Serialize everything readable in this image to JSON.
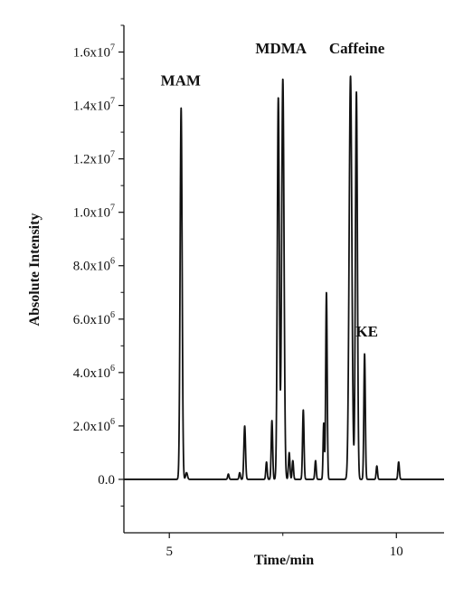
{
  "chart_data": {
    "type": "line",
    "title": "",
    "xlabel": "Time/min",
    "ylabel": "Absolute Intensity",
    "xlim": [
      4,
      11.05
    ],
    "ylim": [
      -2000000,
      17000000
    ],
    "x_ticks": [
      5,
      10
    ],
    "x_tick_labels": [
      "5",
      "10"
    ],
    "y_ticks": [
      0,
      2000000,
      4000000,
      6000000,
      8000000,
      10000000,
      12000000,
      14000000,
      16000000
    ],
    "y_tick_labels": [
      {
        "mant": "0.0",
        "exp": ""
      },
      {
        "mant": "2.0x10",
        "exp": "6"
      },
      {
        "mant": "4.0x10",
        "exp": "6"
      },
      {
        "mant": "6.0x10",
        "exp": "6"
      },
      {
        "mant": "8.0x10",
        "exp": "6"
      },
      {
        "mant": "1.0x10",
        "exp": "7"
      },
      {
        "mant": "1.2x10",
        "exp": "7"
      },
      {
        "mant": "1.4x10",
        "exp": "7"
      },
      {
        "mant": "1.6x10",
        "exp": "7"
      }
    ],
    "grid": false,
    "line_color": "#111111",
    "baseline": 0,
    "peaks": [
      {
        "t": 5.26,
        "h": 13900000,
        "w": 0.022
      },
      {
        "t": 5.38,
        "h": 250000,
        "w": 0.02
      },
      {
        "t": 6.3,
        "h": 200000,
        "w": 0.015
      },
      {
        "t": 6.55,
        "h": 250000,
        "w": 0.015
      },
      {
        "t": 6.66,
        "h": 2000000,
        "w": 0.018
      },
      {
        "t": 7.14,
        "h": 650000,
        "w": 0.015
      },
      {
        "t": 7.26,
        "h": 2200000,
        "w": 0.016
      },
      {
        "t": 7.4,
        "h": 14300000,
        "w": 0.022
      },
      {
        "t": 7.5,
        "h": 15000000,
        "w": 0.026
      },
      {
        "t": 7.64,
        "h": 1000000,
        "w": 0.016
      },
      {
        "t": 7.72,
        "h": 700000,
        "w": 0.015
      },
      {
        "t": 7.95,
        "h": 2600000,
        "w": 0.016
      },
      {
        "t": 8.22,
        "h": 700000,
        "w": 0.015
      },
      {
        "t": 8.4,
        "h": 2100000,
        "w": 0.014
      },
      {
        "t": 8.46,
        "h": 7000000,
        "w": 0.016
      },
      {
        "t": 8.99,
        "h": 15100000,
        "w": 0.03
      },
      {
        "t": 9.12,
        "h": 14500000,
        "w": 0.022
      },
      {
        "t": 9.3,
        "h": 4700000,
        "w": 0.016
      },
      {
        "t": 9.57,
        "h": 500000,
        "w": 0.015
      },
      {
        "t": 10.05,
        "h": 650000,
        "w": 0.016
      }
    ],
    "annotations": [
      {
        "text": "MAM",
        "x": 5.25,
        "y": 14750000
      },
      {
        "text": "MDMA",
        "x": 7.46,
        "y": 15950000
      },
      {
        "text": "Caffeine",
        "x": 9.13,
        "y": 15950000
      },
      {
        "text": "KE",
        "x": 9.35,
        "y": 5350000
      }
    ]
  }
}
